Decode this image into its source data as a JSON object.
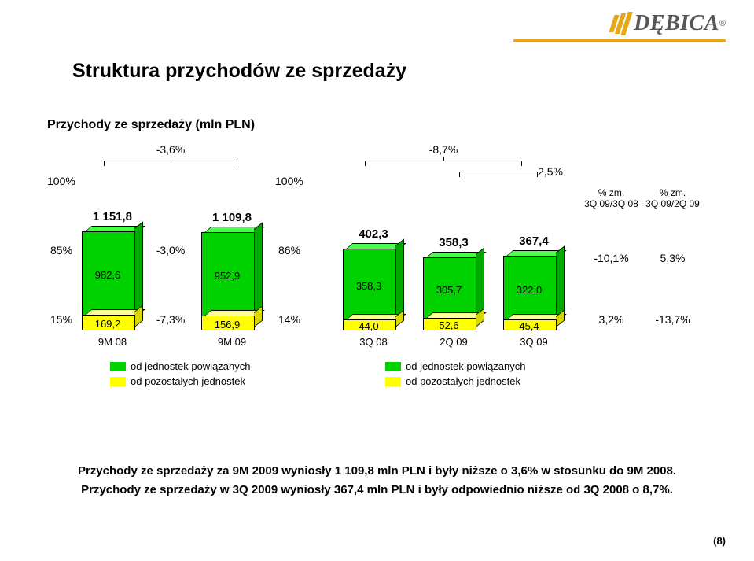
{
  "logo": {
    "text": "DĘBICA",
    "color": "#565656",
    "stripe_color": "#e6a817"
  },
  "title": "Struktura przychodów ze sprzedaży",
  "subtitle": "Przychody ze sprzedaży (mln PLN)",
  "colors": {
    "green": "#00d200",
    "green_side": "#00a800",
    "green_top": "#4dff4d",
    "yellow": "#ffff00",
    "yellow_side": "#d8d800",
    "yellow_top": "#ffff99",
    "text": "#000000",
    "bg": "#ffffff"
  },
  "left_chart": {
    "brace_label": "-3,6%",
    "pct_total": "100%",
    "pct_mid": "85%",
    "pct_low": "15%",
    "bars": [
      {
        "total": "1 151,8",
        "green": "982,6",
        "yellow": "169,2",
        "x": "9M 08",
        "green_h": 106,
        "yellow_h": 18
      },
      {
        "total": "1 109,8",
        "green": "952,9",
        "yellow": "156,9",
        "x": "9M 09",
        "green_h": 106,
        "yellow_h": 17
      }
    ],
    "between_green": "-3,0%",
    "between_yellow": "-7,3%",
    "pct_total_r": "100%",
    "pct_mid_r": "86%",
    "pct_low_r": "14%"
  },
  "right_chart": {
    "brace1_label": "-8,7%",
    "brace2_label": "2,5%",
    "bars": [
      {
        "total": "402,3",
        "green": "358,3",
        "yellow": "44,0",
        "x": "3Q 08",
        "green_h": 90,
        "yellow_h": 12
      },
      {
        "total": "358,3",
        "green": "305,7",
        "yellow": "52,6",
        "x": "2Q 09",
        "green_h": 77,
        "yellow_h": 14
      },
      {
        "total": "367,4",
        "green": "322,0",
        "yellow": "45,4",
        "x": "3Q 09",
        "green_h": 81,
        "yellow_h": 12
      }
    ],
    "headers": [
      {
        "line1": "% zm.",
        "line2": "3Q 09/3Q 08"
      },
      {
        "line1": "% zm.",
        "line2": "3Q 09/2Q 09"
      }
    ],
    "row_green": [
      "-10,1%",
      "5,3%"
    ],
    "row_yellow": [
      "3,2%",
      "-13,7%"
    ]
  },
  "legend_left": [
    {
      "color": "#00d200",
      "label": "od jednostek powiązanych"
    },
    {
      "color": "#ffff00",
      "label": "od pozostałych jednostek"
    }
  ],
  "legend_right": [
    {
      "color": "#00d200",
      "label": "od jednostek powiązanych"
    },
    {
      "color": "#ffff00",
      "label": "od pozostałych jednostek"
    }
  ],
  "footer": [
    "Przychody ze sprzedaży za 9M 2009 wyniosły 1 109,8 mln PLN i były niższe o 3,6% w stosunku do 9M 2008.",
    "Przychody ze sprzedaży w 3Q 2009 wyniosły 367,4 mln PLN i  były odpowiednio niższe od 3Q 2008 o 8,7%."
  ],
  "page_number": "(8)"
}
